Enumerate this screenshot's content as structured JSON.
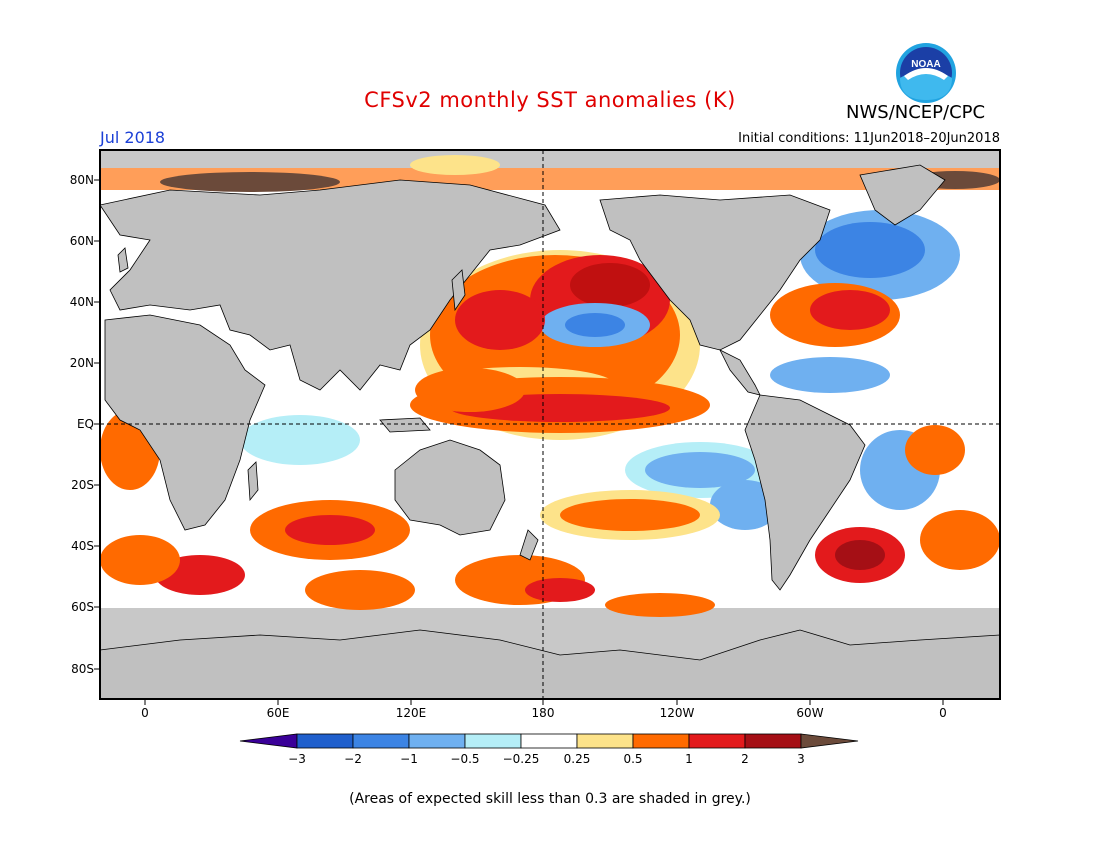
{
  "header": {
    "title": "CFSv2 monthly SST anomalies (K)",
    "month": "Jul 2018",
    "initial_conditions": "Initial conditions: 11Jun2018–20Jun2018",
    "agency": "NWS/NCEP/CPC",
    "logo_text": "NOAA"
  },
  "map": {
    "lat_labels": [
      "80N",
      "60N",
      "40N",
      "20N",
      "EQ",
      "20S",
      "40S",
      "60S",
      "80S"
    ],
    "lon_labels": [
      "0",
      "60E",
      "120E",
      "180",
      "120W",
      "60W",
      "0"
    ],
    "land_color": "#c0c0c0",
    "low_skill_color": "#c8c8c8"
  },
  "colorbar": {
    "labels": [
      "−3",
      "−2",
      "−1",
      "−0.5",
      "−0.25",
      "0.25",
      "0.5",
      "1",
      "2",
      "3"
    ],
    "colors": [
      "#3a0098",
      "#1f5fcc",
      "#3c84e4",
      "#6fb0f0",
      "#b5eef7",
      "#ffffff",
      "#fde38a",
      "#ff6a00",
      "#e31a1c",
      "#a50f15",
      "#6b4a3a"
    ]
  },
  "footnote": "(Areas of expected skill less than 0.3 are shaded in grey.)"
}
